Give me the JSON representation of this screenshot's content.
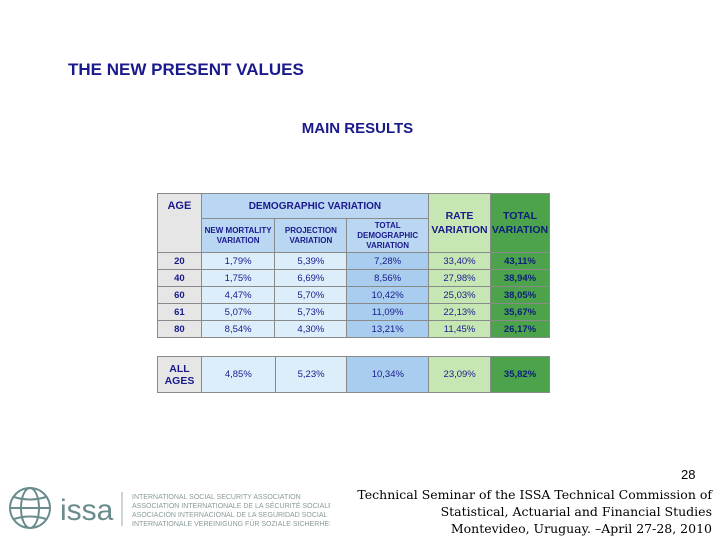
{
  "title": "THE NEW PRESENT VALUES",
  "subtitle": "MAIN RESULTS",
  "table": {
    "headers": {
      "age": "AGE",
      "demographic_variation": "DEMOGRAPHIC VARIATION",
      "new_mortality": [
        "NEW MORTALITY",
        "VARIATION"
      ],
      "projection": [
        "PROJECTION",
        "VARIATION"
      ],
      "total_demographic": [
        "TOTAL",
        "DEMOGRAPHIC",
        "VARIATION"
      ],
      "rate_variation": [
        "RATE",
        "VARIATION"
      ],
      "total_variation": [
        "TOTAL",
        "VARIATION"
      ]
    },
    "rows": [
      {
        "age": "20",
        "new_mortality": "1,79%",
        "projection": "5,39%",
        "total_demographic": "7,28%",
        "rate": "33,40%",
        "total": "43,11%"
      },
      {
        "age": "40",
        "new_mortality": "1,75%",
        "projection": "6,69%",
        "total_demographic": "8,56%",
        "rate": "27,98%",
        "total": "38,94%"
      },
      {
        "age": "60",
        "new_mortality": "4,47%",
        "projection": "5,70%",
        "total_demographic": "10,42%",
        "rate": "25,03%",
        "total": "38,05%"
      },
      {
        "age": "61",
        "new_mortality": "5,07%",
        "projection": "5,73%",
        "total_demographic": "11,09%",
        "rate": "22,13%",
        "total": "35,67%"
      },
      {
        "age": "80",
        "new_mortality": "8,54%",
        "projection": "4,30%",
        "total_demographic": "13,21%",
        "rate": "11,45%",
        "total": "26,17%"
      }
    ],
    "all_ages": {
      "label": [
        "ALL",
        "AGES"
      ],
      "new_mortality": "4,85%",
      "projection": "5,23%",
      "total_demographic": "10,34%",
      "rate": "23,09%",
      "total": "35,82%"
    }
  },
  "footer": {
    "page_number": "28",
    "logo_text": "issa",
    "org_names": [
      "INTERNATIONAL SOCIAL SECURITY ASSOCIATION",
      "ASSOCIATION INTERNATIONALE DE LA SÉCURITÉ SOCIALE",
      "ASOCIACIÓN INTERNACIONAL DE LA SEGURIDAD SOCIAL",
      "INTERNATIONALE VEREINIGUNG FÜR SOZIALE SICHERHEIT"
    ],
    "lines": [
      "Technical Seminar of the ISSA Technical Commission of",
      "Statistical, Actuarial and Financial Studies",
      "Montevideo, Uruguay. –April 27-28, 2010"
    ]
  },
  "colors": {
    "text": "#1a1a8c",
    "blue_light": "#ddeefb",
    "blue_header": "#b9d7f3",
    "blue_mid": "#a8cdef",
    "green_light": "#c6e7b4",
    "green_dark": "#4ca34c",
    "gray": "#e6e6e6"
  }
}
